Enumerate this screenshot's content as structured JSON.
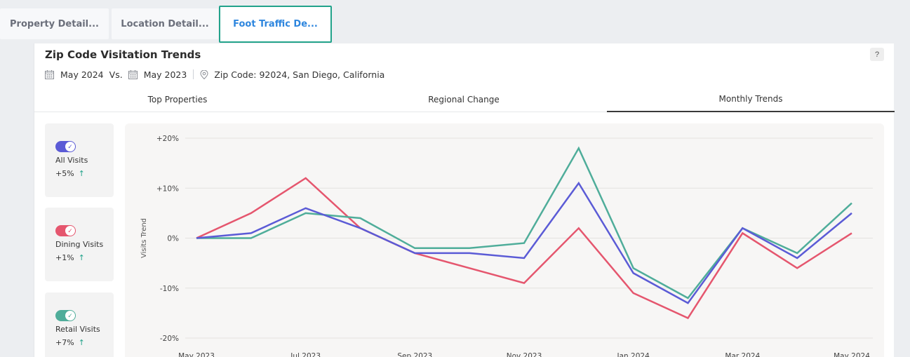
{
  "tabs": [
    {
      "label": "Property Detail..."
    },
    {
      "label": "Location Detail..."
    },
    {
      "label": "Foot Traffic De..."
    }
  ],
  "panel": {
    "title": "Zip Code Visitation Trends",
    "help": "?",
    "date_current": "May 2024",
    "vs": "Vs.",
    "date_compare": "May 2023",
    "zip": "Zip Code: 92024, San Diego, California"
  },
  "subtabs": [
    {
      "label": "Top Properties"
    },
    {
      "label": "Regional Change"
    },
    {
      "label": "Monthly Trends"
    }
  ],
  "legend": [
    {
      "label": "All Visits",
      "pct": "+5%",
      "arrow": "↑",
      "color": "#5b5bd6"
    },
    {
      "label": "Dining Visits",
      "pct": "+1%",
      "arrow": "↑",
      "color": "#e5566e"
    },
    {
      "label": "Retail Visits",
      "pct": "+7%",
      "arrow": "↑",
      "color": "#4fad9a"
    }
  ],
  "icons": {
    "calendar": "calendar-icon",
    "pin": "location-pin-icon",
    "check": "check-icon",
    "arrow": "arrow-up-icon"
  },
  "chart_data": {
    "type": "line",
    "ylabel": "Visits Trend",
    "ylim": [
      -20,
      20
    ],
    "yticks": [
      20,
      10,
      0,
      -10,
      -20
    ],
    "ytick_labels": [
      "+20%",
      "+10%",
      "0%",
      "-10%",
      "-20%"
    ],
    "x": [
      "May 2023",
      "Jun 2023",
      "Jul 2023",
      "Aug 2023",
      "Sep 2023",
      "Oct 2023",
      "Nov 2023",
      "Dec 2023",
      "Jan 2024",
      "Feb 2024",
      "Mar 2024",
      "Apr 2024",
      "May 2024"
    ],
    "xtick_labels": [
      "May 2023",
      "",
      "Jul 2023",
      "",
      "Sep 2023",
      "",
      "Nov 2023",
      "",
      "Jan 2024",
      "",
      "Mar 2024",
      "",
      "May 2024"
    ],
    "grid": true,
    "series": [
      {
        "name": "Dining Visits",
        "color": "#e5566e",
        "values": [
          0,
          5,
          12,
          2,
          -3,
          -6,
          -9,
          2,
          -11,
          -16,
          1,
          -6,
          1
        ]
      },
      {
        "name": "Retail Visits",
        "color": "#4fad9a",
        "values": [
          0,
          0,
          5,
          4,
          -2,
          -2,
          -1,
          18,
          -6,
          -12,
          2,
          -3,
          7
        ]
      },
      {
        "name": "All Visits",
        "color": "#5b5bd6",
        "values": [
          0,
          1,
          6,
          2,
          -3,
          -3,
          -4,
          11,
          -7,
          -13,
          2,
          -4,
          5
        ]
      }
    ]
  }
}
